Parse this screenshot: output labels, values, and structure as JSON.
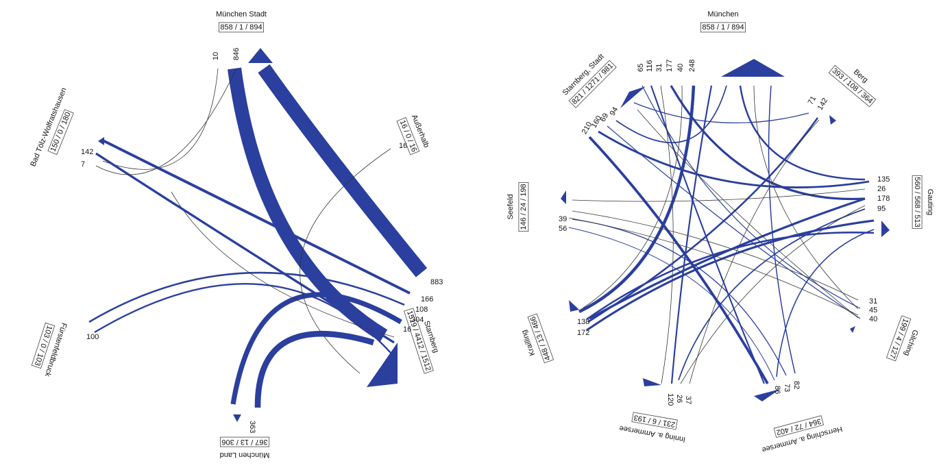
{
  "diagrams": [
    {
      "nodes": [
        {
          "name": "München Stadt",
          "stats": "858 / 1 / 894"
        },
        {
          "name": "Außerhalb",
          "stats": "16 / 0 / 16"
        },
        {
          "name": "Starnberg",
          "stats": "1519 / 4412 / 1512"
        },
        {
          "name": "München Land",
          "stats": "367 / 13 / 306"
        },
        {
          "name": "Fürstenfeldbruck",
          "stats": "103 / 0 / 103"
        },
        {
          "name": "Bad Tölz-Wolfratshausen",
          "stats": "150 / 0 / 180"
        }
      ],
      "flows": [
        {
          "value": 10
        },
        {
          "value": 846
        },
        {
          "value": 883
        },
        {
          "value": 166
        },
        {
          "value": 108
        },
        {
          "value": 304
        },
        {
          "value": 16
        },
        {
          "value": 142
        },
        {
          "value": 7
        },
        {
          "value": 100
        },
        {
          "value": 16
        },
        {
          "value": 363
        }
      ]
    },
    {
      "nodes": [
        {
          "name": "München",
          "stats": "858 / 1 / 894"
        },
        {
          "name": "Berg",
          "stats": "393 / 108 / 364"
        },
        {
          "name": "Gauting",
          "stats": "560 / 568 / 513"
        },
        {
          "name": "Gilching",
          "stats": "199 / 4 / 127"
        },
        {
          "name": "Herrsching a. Ammersee",
          "stats": "364 / 72 / 402"
        },
        {
          "name": "Inning a. Ammersee",
          "stats": "231 / 6 / 193"
        },
        {
          "name": "Krailling",
          "stats": "448 / 13 / 466"
        },
        {
          "name": "Seefeld",
          "stats": "146 / 24 / 198"
        },
        {
          "name": "Starnberg, Stadt",
          "stats": "821 / 1271 / 981"
        }
      ],
      "flows": [
        {
          "value": 65
        },
        {
          "value": 116
        },
        {
          "value": 31
        },
        {
          "value": 177
        },
        {
          "value": 40
        },
        {
          "value": 248
        },
        {
          "value": 210
        },
        {
          "value": 160
        },
        {
          "value": 69
        },
        {
          "value": 94
        },
        {
          "value": 71
        },
        {
          "value": 142
        },
        {
          "value": 135
        },
        {
          "value": 26
        },
        {
          "value": 178
        },
        {
          "value": 95
        },
        {
          "value": 31
        },
        {
          "value": 45
        },
        {
          "value": 40
        },
        {
          "value": 82
        },
        {
          "value": 73
        },
        {
          "value": 86
        },
        {
          "value": 120
        },
        {
          "value": 26
        },
        {
          "value": 37
        },
        {
          "value": 138
        },
        {
          "value": 172
        },
        {
          "value": 39
        },
        {
          "value": 56
        }
      ]
    }
  ]
}
